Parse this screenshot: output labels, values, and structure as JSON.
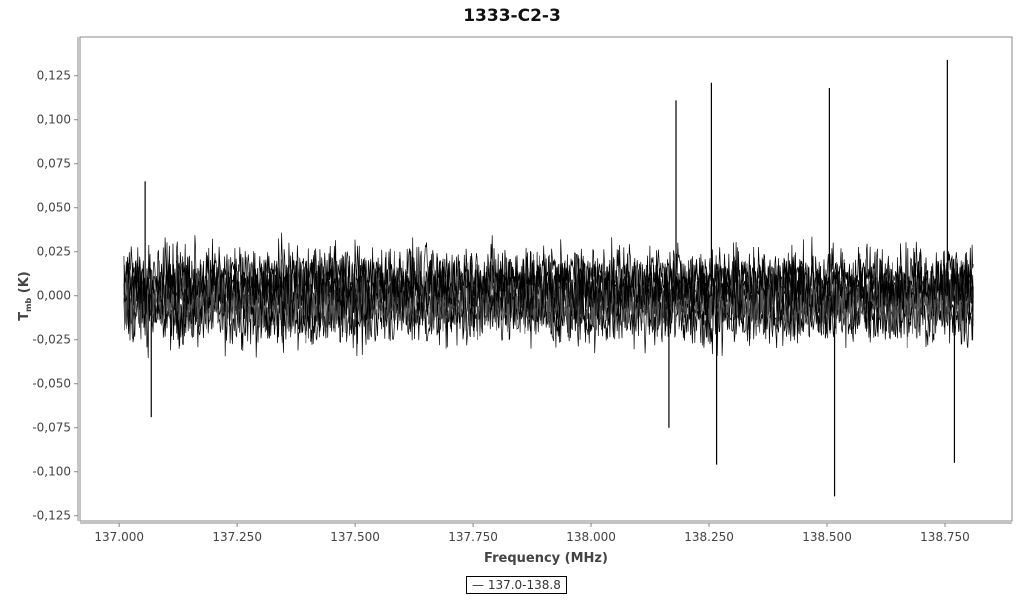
{
  "chart_data": {
    "type": "line",
    "title": "1333-C2-3",
    "xlabel": "Frequency (MHz)",
    "ylabel_main": "T",
    "ylabel_sub": "mb",
    "ylabel_unit": "(K)",
    "xlim": [
      136.917,
      138.892
    ],
    "ylim": [
      -0.128,
      0.147
    ],
    "x_ticks": [
      137.0,
      137.25,
      137.5,
      137.75,
      138.0,
      138.25,
      138.5,
      138.75
    ],
    "x_tick_labels": [
      "137.000",
      "137.250",
      "137.500",
      "137.750",
      "138.000",
      "138.250",
      "138.500",
      "138.750"
    ],
    "y_ticks": [
      0.125,
      0.1,
      0.075,
      0.05,
      0.025,
      0,
      -0.025,
      -0.05,
      -0.075,
      -0.1,
      -0.125
    ],
    "y_tick_labels": [
      "0,125",
      "0,100",
      "0,075",
      "0,050",
      "0,025",
      "0,000",
      "-0,025",
      "-0,050",
      "-0,075",
      "-0,100",
      "-0,125"
    ],
    "grid": false,
    "legend_position": "bottom",
    "series": [
      {
        "name": "137.0-138.8",
        "color": "#000000",
        "x_range": [
          137.01,
          138.81
        ],
        "noise_rms_K": 0.012,
        "spikes": [
          {
            "x": 137.055,
            "y": 0.065
          },
          {
            "x": 137.068,
            "y": -0.069
          },
          {
            "x": 138.165,
            "y": -0.075
          },
          {
            "x": 138.18,
            "y": 0.111
          },
          {
            "x": 138.255,
            "y": 0.121
          },
          {
            "x": 138.266,
            "y": -0.096
          },
          {
            "x": 138.505,
            "y": 0.118
          },
          {
            "x": 138.516,
            "y": -0.114
          },
          {
            "x": 138.755,
            "y": 0.134
          },
          {
            "x": 138.77,
            "y": -0.095
          }
        ]
      }
    ]
  }
}
